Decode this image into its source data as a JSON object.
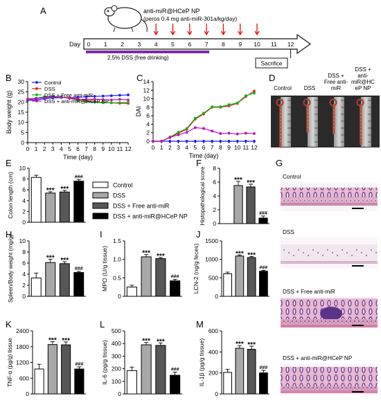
{
  "chart_data": [
    {
      "panel": "A",
      "type": "timeline",
      "axis_label": "Day",
      "days": [
        0,
        1,
        2,
        3,
        4,
        5,
        6,
        7,
        8,
        9,
        10,
        11,
        12
      ],
      "treatment_label_line1": "anti-miR@HCeP NP",
      "treatment_label_line2": "(peros 0.4 mg anti-miR-301a/kg/day)",
      "treatment_days": [
        4,
        5,
        6,
        7,
        8,
        9,
        10
      ],
      "dss_label": "2.5% DSS (free drinking)",
      "dss_range": [
        0,
        7
      ],
      "end_label": "Sacrifice",
      "end_day": 12
    },
    {
      "panel": "B",
      "type": "line",
      "xlabel": "Time (day)",
      "ylabel": "Body weight (g)",
      "xlim": [
        0,
        12
      ],
      "ylim": [
        0,
        30
      ],
      "yticks": [
        0,
        5,
        10,
        15,
        20,
        25,
        30
      ],
      "x": [
        0,
        1,
        2,
        3,
        4,
        5,
        6,
        7,
        8,
        9,
        10,
        11,
        12
      ],
      "series": [
        {
          "name": "Control",
          "color": "#1a1aff",
          "values": [
            20.8,
            21.0,
            21.6,
            22.0,
            22.2,
            22.1,
            22.3,
            22.6,
            22.8,
            22.9,
            23.1,
            23.3,
            23.5
          ]
        },
        {
          "name": "DSS",
          "color": "#e02020",
          "values": [
            21.2,
            21.6,
            22.4,
            22.7,
            22.5,
            22.1,
            21.6,
            20.7,
            20.1,
            19.8,
            19.6,
            19.4,
            19.3
          ]
        },
        {
          "name": "DSS + Free anti-miR",
          "color": "#10b010",
          "values": [
            21.5,
            21.9,
            22.6,
            22.8,
            22.6,
            21.8,
            20.8,
            20.1,
            19.9,
            19.6,
            19.6,
            19.7,
            19.8
          ]
        },
        {
          "name": "DSS + anti-miR@HCeP NP",
          "color": "#c010c0",
          "values": [
            21.4,
            21.7,
            22.1,
            22.5,
            22.3,
            21.8,
            21.3,
            21.3,
            21.4,
            21.2,
            21.0,
            21.3,
            21.0
          ]
        }
      ]
    },
    {
      "panel": "C",
      "type": "line",
      "xlabel": "Time (day)",
      "ylabel": "DAI",
      "xlim": [
        0,
        12
      ],
      "ylim": [
        0,
        14
      ],
      "yticks": [
        0,
        2,
        4,
        6,
        8,
        10,
        12,
        14
      ],
      "x": [
        0,
        1,
        2,
        3,
        4,
        5,
        6,
        7,
        8,
        9,
        10,
        11,
        12
      ],
      "series": [
        {
          "color": "#1a1aff",
          "values": [
            0,
            0,
            0,
            0,
            0,
            0,
            0,
            0,
            0,
            0,
            0,
            0,
            0
          ]
        },
        {
          "color": "#e02020",
          "values": [
            0,
            0,
            0.9,
            1.9,
            2.8,
            5.2,
            6.4,
            8.0,
            8.0,
            8.3,
            8.9,
            10.5,
            11.8
          ]
        },
        {
          "color": "#10b010",
          "values": [
            0,
            0,
            1.0,
            2.1,
            3.0,
            5.4,
            6.6,
            8.1,
            8.1,
            8.6,
            9.0,
            10.7,
            11.3
          ]
        },
        {
          "color": "#c010c0",
          "values": [
            0,
            0,
            0.9,
            1.5,
            2.1,
            3.2,
            3.0,
            2.4,
            1.8,
            1.9,
            1.7,
            1.9,
            1.8
          ]
        }
      ]
    },
    {
      "panel": "D",
      "type": "photo",
      "labels": [
        "Control",
        "DSS",
        "DSS +\nFree anti-\nmiR",
        "DSS +\nanti-\nmiR@HC\neP NP"
      ]
    },
    {
      "panel": "E",
      "type": "bar",
      "ylabel": "Colon length (cm)",
      "ylim": [
        0,
        10
      ],
      "yticks": [
        0,
        2,
        4,
        6,
        8,
        10
      ],
      "values": [
        8.3,
        5.4,
        5.6,
        7.6
      ],
      "errors": [
        0.4,
        0.25,
        0.3,
        0.3
      ],
      "annotations": [
        "",
        "***",
        "***",
        "###"
      ],
      "legend": [
        "Control",
        "DSS",
        "DSS + Free anti-miR",
        "DSS + anti-miR@HCeP NP"
      ]
    },
    {
      "panel": "F",
      "type": "bar",
      "ylabel": "Histopathological score",
      "ylim": [
        0,
        8
      ],
      "yticks": [
        0,
        2,
        4,
        6,
        8
      ],
      "values": [
        0,
        5.5,
        5.3,
        0.8
      ],
      "errors": [
        0,
        0.6,
        0.4,
        0.3
      ],
      "annotations": [
        "",
        "***",
        "***",
        "###"
      ]
    },
    {
      "panel": "G",
      "type": "photo",
      "labels": [
        "Control",
        "DSS",
        "DSS + Free anti-miR",
        "DSS + anti-miR@HCeP NP"
      ]
    },
    {
      "panel": "H",
      "type": "bar",
      "ylabel": "Spleen/Body weight (mg/g)",
      "ylim": [
        0,
        10
      ],
      "yticks": [
        0,
        2,
        4,
        6,
        8,
        10
      ],
      "values": [
        3.3,
        6.1,
        5.9,
        4.3
      ],
      "errors": [
        0.9,
        0.6,
        0.35,
        0.2
      ],
      "annotations": [
        "",
        "***",
        "***",
        "###"
      ]
    },
    {
      "panel": "I",
      "type": "bar",
      "ylabel": "MPO (U/g tissue)",
      "ylim": [
        0,
        1.5
      ],
      "yticks": [
        0,
        0.5,
        1.0,
        1.5
      ],
      "yticklabels": [
        "0",
        "0.5",
        "1.0",
        "1.5"
      ],
      "values": [
        0.25,
        1.07,
        1.02,
        0.42
      ],
      "errors": [
        0.05,
        0.06,
        0.03,
        0.04
      ],
      "annotations": [
        "",
        "***",
        "***",
        "###"
      ]
    },
    {
      "panel": "J",
      "type": "bar",
      "ylabel": "LCN-2 (ng/g feces)",
      "ylim": [
        0,
        1500
      ],
      "yticks": [
        0,
        500,
        1000,
        1500
      ],
      "values": [
        610,
        1090,
        1050,
        680
      ],
      "errors": [
        45,
        30,
        30,
        25
      ],
      "annotations": [
        "",
        "***",
        "***",
        "###"
      ]
    },
    {
      "panel": "K",
      "type": "bar",
      "ylabel": "TNF-α (pg/g) tissue",
      "ylim": [
        0,
        2400
      ],
      "yticks": [
        0,
        600,
        1200,
        1800,
        2400
      ],
      "values": [
        950,
        1880,
        1870,
        950
      ],
      "errors": [
        180,
        110,
        110,
        80
      ],
      "annotations": [
        "",
        "***",
        "***",
        "###"
      ]
    },
    {
      "panel": "L",
      "type": "bar",
      "ylabel": "IL-6 (pg/g tissue)",
      "ylim": [
        0,
        500
      ],
      "yticks": [
        0,
        100,
        200,
        300,
        400,
        500
      ],
      "values": [
        185,
        390,
        385,
        148
      ],
      "errors": [
        28,
        18,
        20,
        25
      ],
      "annotations": [
        "",
        "***",
        "***",
        "###"
      ]
    },
    {
      "panel": "M",
      "type": "bar",
      "ylabel": "IL-1β (pg/g tissue)",
      "ylim": [
        0,
        600
      ],
      "yticks": [
        0,
        200,
        400,
        600
      ],
      "values": [
        205,
        435,
        425,
        200
      ],
      "errors": [
        30,
        25,
        30,
        25
      ],
      "annotations": [
        "",
        "***",
        "***",
        "###"
      ]
    }
  ],
  "colors": {
    "control_bar": "#ffffff",
    "dss_bar": "#a8a8a8",
    "free_bar": "#575757",
    "np_bar": "#000000",
    "dss_timeline": "#7a2da0",
    "treatment_arrow": "#e01010",
    "tissue_pink": "#e8b6c6",
    "tissue_purple": "#8a5aa6"
  }
}
